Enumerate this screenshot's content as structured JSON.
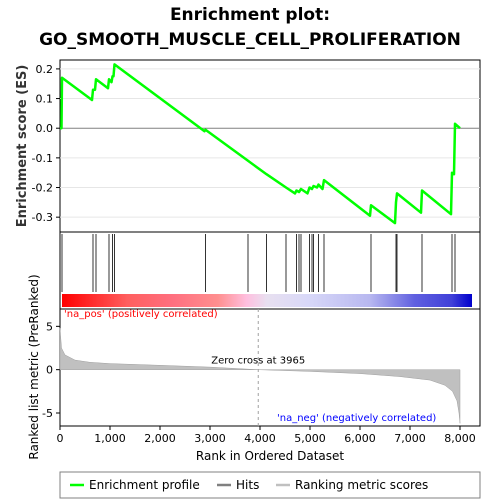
{
  "chart_data": {
    "type": "line",
    "title_line1": "Enrichment plot:",
    "title_line2": "GO_SMOOTH_MUSCLE_CELL_PROLIFERATION",
    "xlabel": "Rank in Ordered Dataset",
    "ylabel_top": "Enrichment score (ES)",
    "ylabel_bottom": "Ranked list metric (PreRanked)",
    "xlim": [
      0,
      8400
    ],
    "x_ticks": [
      0,
      1000,
      2000,
      3000,
      4000,
      5000,
      6000,
      7000,
      8000
    ],
    "x_tick_labels": [
      "0",
      "1,000",
      "2,000",
      "3,000",
      "4,000",
      "5,000",
      "6,000",
      "7,000",
      "8,000"
    ],
    "es_ylim": [
      -0.35,
      0.23
    ],
    "es_ticks": [
      0.2,
      0.1,
      0.0,
      -0.1,
      -0.2,
      -0.3
    ],
    "es_tick_labels": [
      "0.2",
      "0.1",
      "0.0",
      "-0.1",
      "-0.2",
      "-0.3"
    ],
    "metric_ylim": [
      -6.5,
      7
    ],
    "metric_ticks": [
      5,
      0,
      -5
    ],
    "metric_tick_labels": [
      "5",
      "0",
      "-5"
    ],
    "series_enrichment": {
      "name": "Enrichment profile",
      "color": "#00ff00",
      "points": [
        [
          0,
          0.0
        ],
        [
          30,
          0.0
        ],
        [
          40,
          0.17
        ],
        [
          640,
          0.095
        ],
        [
          660,
          0.13
        ],
        [
          700,
          0.13
        ],
        [
          720,
          0.165
        ],
        [
          960,
          0.135
        ],
        [
          980,
          0.165
        ],
        [
          1030,
          0.155
        ],
        [
          1050,
          0.175
        ],
        [
          1070,
          0.175
        ],
        [
          1090,
          0.215
        ],
        [
          2890,
          -0.01
        ],
        [
          2910,
          -0.005
        ],
        [
          3760,
          -0.11
        ],
        [
          4130,
          -0.155
        ],
        [
          4520,
          -0.2
        ],
        [
          4700,
          -0.22
        ],
        [
          4730,
          -0.21
        ],
        [
          4780,
          -0.215
        ],
        [
          4820,
          -0.205
        ],
        [
          4950,
          -0.22
        ],
        [
          4990,
          -0.2
        ],
        [
          5040,
          -0.205
        ],
        [
          5070,
          -0.195
        ],
        [
          5140,
          -0.2
        ],
        [
          5170,
          -0.19
        ],
        [
          5250,
          -0.205
        ],
        [
          5280,
          -0.175
        ],
        [
          6200,
          -0.295
        ],
        [
          6220,
          -0.26
        ],
        [
          6700,
          -0.32
        ],
        [
          6720,
          -0.25
        ],
        [
          6740,
          -0.22
        ],
        [
          7220,
          -0.285
        ],
        [
          7240,
          -0.21
        ],
        [
          7820,
          -0.29
        ],
        [
          7840,
          -0.15
        ],
        [
          7880,
          -0.155
        ],
        [
          7900,
          0.015
        ],
        [
          8000,
          0.0
        ]
      ]
    },
    "hits": [
      40,
      660,
      720,
      980,
      1050,
      1090,
      2910,
      3760,
      4130,
      4520,
      4730,
      4780,
      4820,
      4990,
      5040,
      5070,
      5170,
      5280,
      6220,
      6720,
      6740,
      7240,
      7840,
      7900
    ],
    "hits_label": "Hits",
    "ranking_metric": {
      "name": "Ranking metric scores",
      "color": "#c0c0c0",
      "points": [
        [
          0,
          4.8
        ],
        [
          30,
          2.5
        ],
        [
          100,
          1.7
        ],
        [
          300,
          1.1
        ],
        [
          600,
          0.85
        ],
        [
          1000,
          0.7
        ],
        [
          2000,
          0.5
        ],
        [
          3000,
          0.3
        ],
        [
          3965,
          0.0
        ],
        [
          5000,
          -0.2
        ],
        [
          6000,
          -0.45
        ],
        [
          6800,
          -0.8
        ],
        [
          7400,
          -1.2
        ],
        [
          7700,
          -1.8
        ],
        [
          7850,
          -2.5
        ],
        [
          7940,
          -3.6
        ],
        [
          7980,
          -5.0
        ],
        [
          8000,
          -6.2
        ]
      ]
    },
    "zero_cross_rank": 3965,
    "zero_cross_label": "Zero cross at 3965",
    "pos_label": "'na_pos' (positively correlated)",
    "neg_label": "'na_neg' (negatively correlated)",
    "pos_label_color": "#ff0000",
    "neg_label_color": "#0000ff",
    "legend_placement": "bottom",
    "legend": [
      {
        "name": "Enrichment profile",
        "color": "#00ff00"
      },
      {
        "name": "Hits",
        "color": "#808080"
      },
      {
        "name": "Ranking metric scores",
        "color": "#c0c0c0"
      }
    ]
  }
}
